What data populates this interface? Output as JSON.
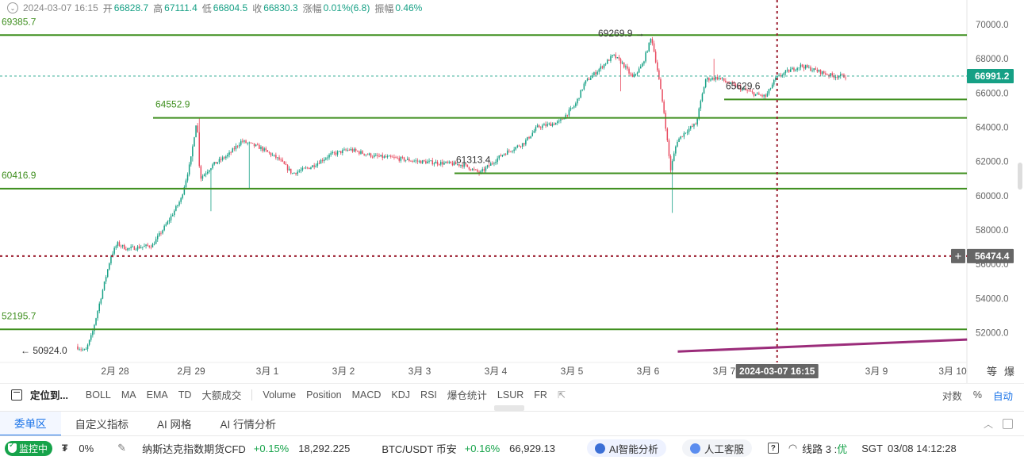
{
  "ohlc": {
    "datetime": "2024-03-07 16:15",
    "open_label": "开",
    "open": "66828.7",
    "high_label": "高",
    "high": "67111.4",
    "low_label": "低",
    "low": "66804.5",
    "close_label": "收",
    "close": "66830.3",
    "change_label": "涨幅",
    "change": "0.01%(6.8)",
    "amp_label": "振幅",
    "amp": "0.46%"
  },
  "axis": {
    "y_ticks": [
      "70000.0",
      "68000.0",
      "66000.0",
      "64000.0",
      "62000.0",
      "60000.0",
      "58000.0",
      "56000.0",
      "54000.0",
      "52000.0"
    ],
    "x_ticks": [
      "2月 28",
      "2月 29",
      "3月 1",
      "3月 2",
      "3月 3",
      "3月 4",
      "3月 5",
      "3月 6",
      "3月 7",
      "3月 9",
      "3月 10"
    ],
    "current_price": "66991.2",
    "crosshair_price": "56474.4",
    "crosshair_time": "2024-03-07 16:15",
    "corner_labels": [
      "等",
      "爆"
    ]
  },
  "annotations": {
    "level_69385": "69385.7",
    "level_64552": "64552.9",
    "level_60416": "60416.9",
    "level_52195": "52195.7",
    "peak_high": "69269.9",
    "local_low_61313": "61313.4",
    "local_low_65629": "65629.6",
    "start_low": "50924.0"
  },
  "toolbar": {
    "locate": "定位到...",
    "indicators": [
      "BOLL",
      "MA",
      "EMA",
      "TD",
      "大额成交"
    ],
    "indicators2": [
      "Volume",
      "Position",
      "MACD",
      "KDJ",
      "RSI",
      "爆仓统计",
      "LSUR",
      "FR"
    ],
    "ext_icon": "external-link-icon",
    "log": "对数",
    "percent": "%",
    "auto": "自动"
  },
  "tabs": [
    "委单区",
    "自定义指标",
    "AI 网格",
    "AI 行情分析"
  ],
  "status": {
    "monitor": "监控中",
    "symbol": "₮",
    "pct": "0%",
    "ticker1_name": "纳斯达克指数期货CFD",
    "ticker1_change": "+0.15%",
    "ticker1_price": "18,292.225",
    "ticker2_name": "BTC/USDT 币安",
    "ticker2_change": "+0.16%",
    "ticker2_price": "66,929.13",
    "ai_analysis": "AI智能分析",
    "support": "人工客服",
    "help": "?",
    "line_label": "线路 3 :",
    "line_quality": "优",
    "tz": "SGT",
    "clock": "03/08 14:12:28"
  },
  "colors": {
    "up": "#16a085",
    "down": "#e84a5f",
    "level_line": "#3f8f1f",
    "trend_line": "#9b2c7a",
    "crosshair": "#9b1c2e"
  },
  "chart_data": {
    "type": "candlestick",
    "ylim": [
      50900,
      70700
    ],
    "path": [
      [
        "02-27 12:00",
        51200
      ],
      [
        "02-27 15:00",
        50924
      ],
      [
        "02-27 17:00",
        51900
      ],
      [
        "02-27 20:00",
        54200
      ],
      [
        "02-27 23:00",
        56500
      ],
      [
        "02-28 01:00",
        57200
      ],
      [
        "02-28 04:00",
        56900
      ],
      [
        "02-28 08:00",
        57000
      ],
      [
        "02-28 12:00",
        57100
      ],
      [
        "02-28 17:00",
        58500
      ],
      [
        "02-28 21:00",
        59800
      ],
      [
        "02-29 00:00",
        62000
      ],
      [
        "02-29 02:00",
        64552
      ],
      [
        "02-29 03:00",
        61000
      ],
      [
        "02-29 07:00",
        61800
      ],
      [
        "02-29 12:00",
        62400
      ],
      [
        "02-29 16:00",
        63200
      ],
      [
        "02-29 22:00",
        62800
      ],
      [
        "03-01 04:00",
        62100
      ],
      [
        "03-01 08:00",
        61300
      ],
      [
        "03-01 14:00",
        61700
      ],
      [
        "03-01 20:00",
        62400
      ],
      [
        "03-02 02:00",
        62700
      ],
      [
        "03-02 10:00",
        62300
      ],
      [
        "03-02 16:00",
        62200
      ],
      [
        "03-03 00:00",
        62000
      ],
      [
        "03-03 08:00",
        61900
      ],
      [
        "03-03 14:00",
        61800
      ],
      [
        "03-03 19:00",
        61313
      ],
      [
        "03-04 02:00",
        62400
      ],
      [
        "03-04 09:00",
        63100
      ],
      [
        "03-04 13:00",
        64000
      ],
      [
        "03-04 20:00",
        64300
      ],
      [
        "03-05 01:00",
        65300
      ],
      [
        "03-05 04:00",
        66600
      ],
      [
        "03-05 08:00",
        67300
      ],
      [
        "03-05 13:00",
        68200
      ],
      [
        "03-05 16:00",
        67700
      ],
      [
        "03-05 19:00",
        66900
      ],
      [
        "03-05 22:00",
        67600
      ],
      [
        "03-06 01:00",
        69269
      ],
      [
        "03-06 03:00",
        67200
      ],
      [
        "03-06 05:00",
        64800
      ],
      [
        "03-06 07:00",
        61500
      ],
      [
        "03-06 09:00",
        63200
      ],
      [
        "03-06 12:00",
        63800
      ],
      [
        "03-06 15:00",
        64200
      ],
      [
        "03-06 18:00",
        66800
      ],
      [
        "03-06 22:00",
        66900
      ],
      [
        "03-07 02:00",
        66500
      ],
      [
        "03-07 06:00",
        66200
      ],
      [
        "03-07 10:00",
        65900
      ],
      [
        "03-07 13:00",
        65800
      ],
      [
        "03-07 16:00",
        66831
      ],
      [
        "03-07 19:00",
        67200
      ],
      [
        "03-08 00:00",
        67600
      ],
      [
        "03-08 05:00",
        67300
      ],
      [
        "03-08 10:00",
        67000
      ],
      [
        "03-08 14:00",
        66991
      ]
    ],
    "extremes": [
      [
        "02-29 06:00",
        59100
      ],
      [
        "02-29 18:00",
        60400
      ],
      [
        "03-05 15:00",
        66100
      ],
      [
        "03-06 07:00",
        59000
      ],
      [
        "03-06 20:00",
        68000
      ]
    ],
    "horizontal_levels": [
      69385.7,
      64552.9,
      61313.4,
      60416.9,
      52195.7,
      65629.6
    ],
    "trend_line": [
      [
        "03-06 09:00",
        50900
      ],
      [
        "03-10 04:00",
        51600
      ]
    ],
    "crosshair": {
      "time": "03-07 16:15",
      "price": 56474.4
    }
  }
}
